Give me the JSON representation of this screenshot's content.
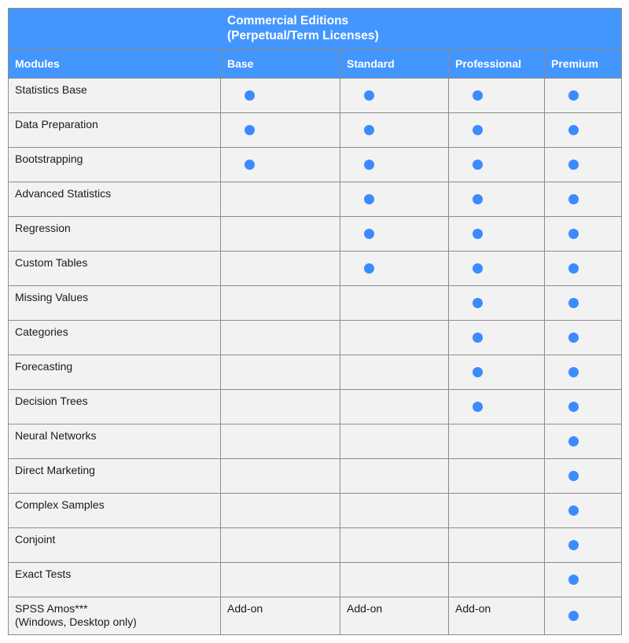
{
  "table": {
    "type": "feature-matrix",
    "header_bg": "#4496ff",
    "header_fg": "#ffffff",
    "body_bg": "#f2f2f2",
    "border_color": "#8c8c8c",
    "dot_color": "#3b8bff",
    "title_line1": "Commercial Editions",
    "title_line2": "(Perpetual/Term Licenses)",
    "row_header_label": "Modules",
    "columns": [
      "Base",
      "Standard",
      "Professional",
      "Premium"
    ],
    "addon_text": "Add-on",
    "rows": [
      {
        "label": "Statistics Base",
        "cells": [
          "dot",
          "dot",
          "dot",
          "dot"
        ]
      },
      {
        "label": "Data Preparation",
        "cells": [
          "dot",
          "dot",
          "dot",
          "dot"
        ]
      },
      {
        "label": "Bootstrapping",
        "cells": [
          "dot",
          "dot",
          "dot",
          "dot"
        ]
      },
      {
        "label": "Advanced Statistics",
        "cells": [
          "",
          "dot",
          "dot",
          "dot"
        ]
      },
      {
        "label": "Regression",
        "cells": [
          "",
          "dot",
          "dot",
          "dot"
        ]
      },
      {
        "label": "Custom Tables",
        "cells": [
          "",
          "dot",
          "dot",
          "dot"
        ]
      },
      {
        "label": "Missing Values",
        "cells": [
          "",
          "",
          "dot",
          "dot"
        ]
      },
      {
        "label": "Categories",
        "cells": [
          "",
          "",
          "dot",
          "dot"
        ]
      },
      {
        "label": "Forecasting",
        "cells": [
          "",
          "",
          "dot",
          "dot"
        ]
      },
      {
        "label": "Decision Trees",
        "cells": [
          "",
          "",
          "dot",
          "dot"
        ]
      },
      {
        "label": "Neural Networks",
        "cells": [
          "",
          "",
          "",
          "dot"
        ]
      },
      {
        "label": "Direct Marketing",
        "cells": [
          "",
          "",
          "",
          "dot"
        ]
      },
      {
        "label": "Complex Samples",
        "cells": [
          "",
          "",
          "",
          "dot"
        ]
      },
      {
        "label": "Conjoint",
        "cells": [
          "",
          "",
          "",
          "dot"
        ]
      },
      {
        "label": "Exact Tests",
        "cells": [
          "",
          "",
          "",
          "dot"
        ]
      },
      {
        "label": "SPSS Amos***\n(Windows, Desktop only)",
        "cells": [
          "addon",
          "addon",
          "addon",
          "dot"
        ]
      }
    ]
  }
}
